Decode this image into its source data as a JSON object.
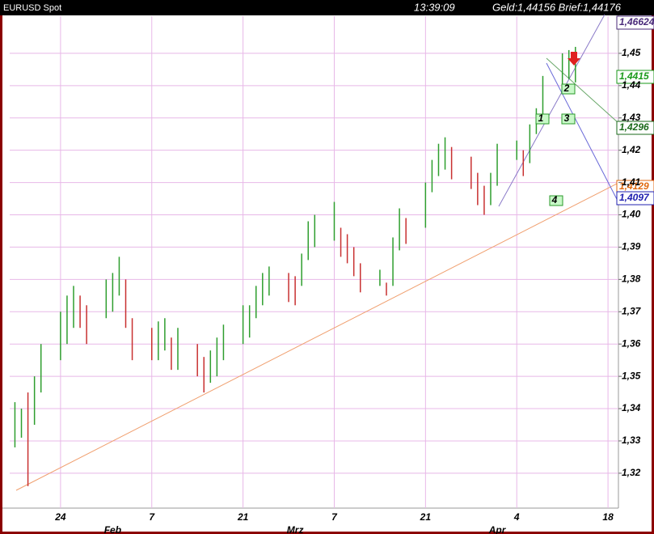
{
  "chart_data": {
    "type": "hilo",
    "title": "EURUSD Spot",
    "time": "13:39:09",
    "quote": "Geld:1,44156  Brief:1,44176",
    "x": [
      17,
      18,
      19,
      20,
      21,
      24,
      25,
      26,
      27,
      28,
      31,
      32,
      33,
      34,
      35,
      38,
      39,
      40,
      41,
      42,
      45,
      46,
      47,
      48,
      49,
      52,
      53,
      54,
      55,
      56,
      59,
      60,
      61,
      62,
      63,
      66,
      67,
      68,
      69,
      70,
      73,
      74,
      75,
      76,
      77,
      80,
      81,
      82,
      83,
      84,
      87,
      88,
      89,
      90,
      91,
      94,
      95,
      96,
      97,
      98,
      101,
      102,
      103
    ],
    "high": [
      1.342,
      1.34,
      1.345,
      1.35,
      1.36,
      1.37,
      1.375,
      1.378,
      1.375,
      1.372,
      1.38,
      1.382,
      1.387,
      1.38,
      1.368,
      1.365,
      1.367,
      1.368,
      1.362,
      1.365,
      1.36,
      1.356,
      1.358,
      1.362,
      1.366,
      1.372,
      1.372,
      1.378,
      1.382,
      1.384,
      1.382,
      1.381,
      1.388,
      1.398,
      1.4,
      1.404,
      1.396,
      1.394,
      1.39,
      1.385,
      1.383,
      1.379,
      1.393,
      1.402,
      1.399,
      1.41,
      1.417,
      1.422,
      1.424,
      1.421,
      1.418,
      1.413,
      1.409,
      1.413,
      1.422,
      1.423,
      1.42,
      1.428,
      1.433,
      1.443,
      1.45,
      1.451,
      1.452
    ],
    "low": [
      1.328,
      1.331,
      1.316,
      1.335,
      1.345,
      1.355,
      1.36,
      1.365,
      1.365,
      1.36,
      1.368,
      1.37,
      1.375,
      1.365,
      1.355,
      1.355,
      1.355,
      1.358,
      1.352,
      1.352,
      1.35,
      1.345,
      1.348,
      1.35,
      1.355,
      1.36,
      1.362,
      1.368,
      1.372,
      1.375,
      1.373,
      1.372,
      1.378,
      1.386,
      1.39,
      1.392,
      1.387,
      1.385,
      1.381,
      1.376,
      1.378,
      1.375,
      1.378,
      1.389,
      1.391,
      1.396,
      1.407,
      1.412,
      1.414,
      1.411,
      1.408,
      1.403,
      1.4,
      1.403,
      1.409,
      1.417,
      1.412,
      1.416,
      1.425,
      1.431,
      1.44,
      1.442,
      1.441
    ],
    "up_color": "#2e9e2e",
    "down_color": "#c83030",
    "xlim": [
      16.2,
      109.6
    ],
    "ylim": [
      1.3092,
      1.4615
    ],
    "xticks": [
      24,
      {
        "value": 38,
        "label": "7"
      },
      {
        "value": 52,
        "label": "21"
      },
      {
        "value": 66,
        "label": "7"
      },
      {
        "value": 80,
        "label": "21"
      },
      {
        "value": 94,
        "label": "4"
      },
      {
        "value": 108,
        "label": "18"
      }
    ],
    "month_labels": [
      {
        "value": 32,
        "label": "Feb"
      },
      {
        "value": 60,
        "label": "Mrz"
      },
      {
        "value": 91,
        "label": "Apr"
      }
    ],
    "yticks": [
      {
        "value": 1.32,
        "label": "1,32"
      },
      {
        "value": 1.33,
        "label": "1,33"
      },
      {
        "value": 1.34,
        "label": "1,34"
      },
      {
        "value": 1.35,
        "label": "1,35"
      },
      {
        "value": 1.36,
        "label": "1,36"
      },
      {
        "value": 1.37,
        "label": "1,37"
      },
      {
        "value": 1.38,
        "label": "1,38"
      },
      {
        "value": 1.39,
        "label": "1,39"
      },
      {
        "value": 1.4,
        "label": "1,40"
      },
      {
        "value": 1.41,
        "label": "1,41"
      },
      {
        "value": 1.42,
        "label": "1,42"
      },
      {
        "value": 1.43,
        "label": "1,43"
      },
      {
        "value": 1.44,
        "label": "1,44"
      },
      {
        "value": 1.45,
        "label": "1,45"
      }
    ],
    "grid": true,
    "price_labels": [
      {
        "text": "1,46624",
        "color": "#4a2a7a"
      },
      {
        "text": "1,4415",
        "color": "#1a9a1a"
      },
      {
        "text": "1,4296",
        "color": "#1a6a1a"
      },
      {
        "text": "1,4129",
        "color": "#e06a10"
      },
      {
        "text": "1,4097",
        "color": "#2020b0"
      }
    ],
    "markers": [
      "1",
      "2",
      "3",
      "4"
    ]
  }
}
